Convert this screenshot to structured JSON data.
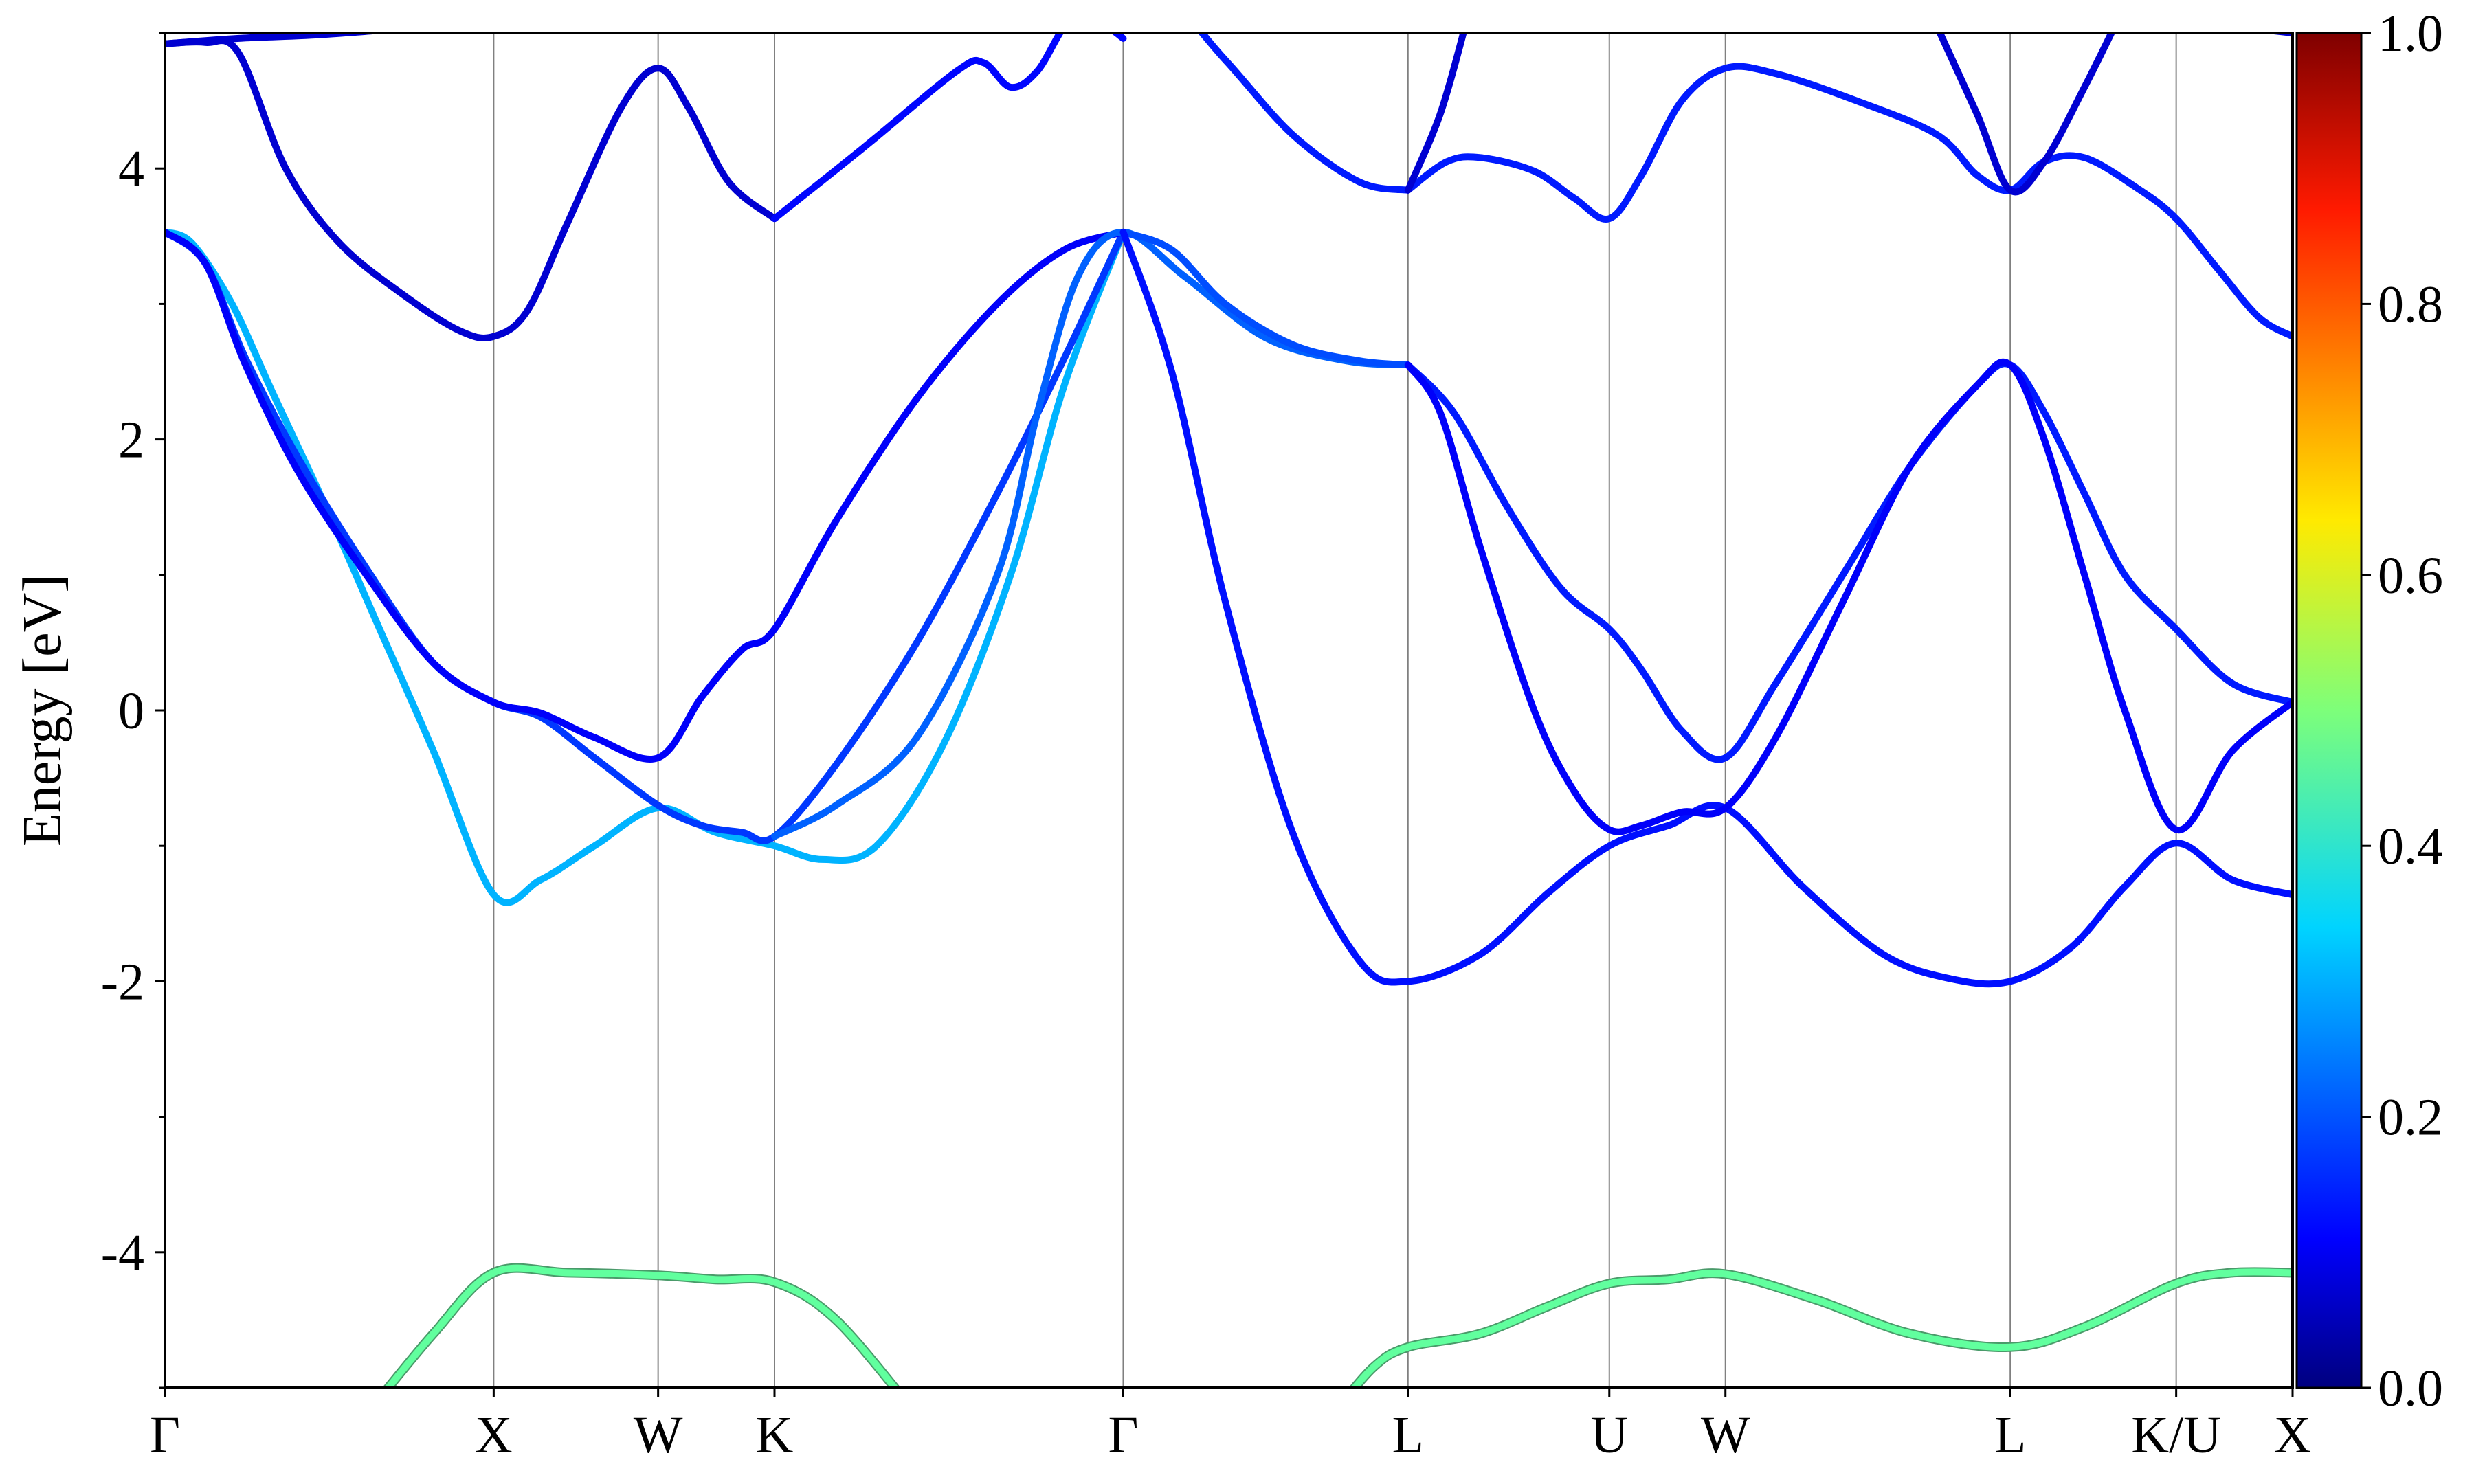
{
  "chart_data": {
    "type": "line",
    "title": "",
    "xlabel": "",
    "ylabel": "Energy [eV]",
    "ylim": [
      -5,
      5
    ],
    "y_ticks": [
      -4,
      -2,
      0,
      2,
      4
    ],
    "y_tick_labels": [
      "-4",
      "-2",
      "0",
      "2",
      "4"
    ],
    "high_symmetry_labels": [
      "Γ",
      "X",
      "W",
      "K",
      "Γ",
      "L",
      "U",
      "W",
      "L",
      "K/U",
      "X"
    ],
    "high_symmetry_x": [
      0,
      2.449,
      3.674,
      4.541,
      7.139,
      9.26,
      10.76,
      11.625,
      13.747,
      14.983,
      15.85
    ],
    "xlim": [
      0,
      15.85
    ],
    "colorbar": {
      "min": 0.0,
      "max": 1.0,
      "ticks": [
        "0.0",
        "0.2",
        "0.4",
        "0.6",
        "0.8",
        "1.0"
      ],
      "colormap": "jet"
    },
    "series": [
      {
        "color_value": 0.08,
        "x": [
          0,
          0.55,
          1.2,
          1.8,
          2.2,
          2.449,
          2.75,
          3.1,
          3.5,
          3.674,
          3.9,
          4.2,
          4.541,
          5.2,
          6.0,
          6.5,
          7.139,
          7.5,
          8.2,
          9.0,
          9.26,
          9.6,
          10.2,
          10.76,
          11.0,
          11.35,
          11.625,
          12.2,
          12.8,
          13.2,
          13.747,
          14.2,
          14.7,
          14.983,
          15.4,
          15.85
        ],
        "y": [
          4.92,
          4.96,
          4.99,
          5.05,
          5.2,
          5.35,
          5.2,
          5.1,
          5.1,
          5.12,
          5.1,
          5.05,
          5.06,
          5.1,
          5.2,
          5.15,
          5.1,
          5.2,
          5.3,
          5.2,
          5.15,
          5.2,
          5.3,
          5.25,
          5.2,
          5.15,
          5.2,
          5.3,
          5.3,
          5.4,
          5.5,
          5.4,
          5.2,
          5.1,
          5.05,
          5.0
        ]
      },
      {
        "color_value": 0.08,
        "x": [
          0,
          0.3,
          0.55,
          0.9,
          1.3,
          1.8,
          2.2,
          2.449,
          2.7,
          3.0,
          3.4,
          3.674,
          3.9,
          4.2,
          4.541
        ],
        "y": [
          4.92,
          4.93,
          4.85,
          4.0,
          3.45,
          3.05,
          2.8,
          2.76,
          2.95,
          3.6,
          4.45,
          4.74,
          4.45,
          3.9,
          3.63
        ]
      },
      {
        "color_value": 0.13,
        "x": [
          4.541,
          5.2,
          5.9,
          6.1,
          6.3,
          6.5,
          6.75,
          7.0,
          7.139
        ],
        "y": [
          3.63,
          4.15,
          4.72,
          4.78,
          4.6,
          4.72,
          5.1,
          5.05,
          4.96
        ]
      },
      {
        "color_value": 0.15,
        "x": [
          7.139,
          7.5,
          7.9,
          8.4,
          8.9,
          9.26
        ],
        "y": [
          5.1,
          5.2,
          4.8,
          4.25,
          3.9,
          3.84
        ]
      },
      {
        "color_value": 0.15,
        "x": [
          9.26,
          9.55,
          9.8,
          10.2,
          10.5,
          10.76,
          11.0,
          11.3,
          11.625,
          12.0,
          12.6,
          13.2,
          13.5,
          13.747,
          14.0,
          14.3,
          14.7,
          14.983,
          15.3,
          15.6,
          15.85
        ],
        "y": [
          3.84,
          4.05,
          4.08,
          3.98,
          3.78,
          3.63,
          3.95,
          4.5,
          4.74,
          4.7,
          4.5,
          4.25,
          3.95,
          3.84,
          4.05,
          4.08,
          3.85,
          3.63,
          3.25,
          2.9,
          2.76
        ]
      },
      {
        "color_value": 0.08,
        "x": [
          9.26,
          9.5,
          9.7
        ],
        "y": [
          3.84,
          4.4,
          5.1
        ]
      },
      {
        "color_value": 0.08,
        "x": [
          13.2,
          13.5,
          13.747,
          14.0,
          14.3,
          14.55
        ],
        "y": [
          5.05,
          4.4,
          3.84,
          4.05,
          4.6,
          5.1
        ]
      },
      {
        "color_value": 0.3,
        "x": [
          0,
          0.2,
          0.5,
          0.8,
          1.2,
          1.6,
          2.0,
          2.449,
          2.8,
          3.2,
          3.674,
          4.1,
          4.541,
          4.9,
          5.3,
          5.8,
          6.3,
          6.7,
          7.139
        ],
        "y": [
          3.53,
          3.45,
          3.0,
          2.35,
          1.5,
          0.6,
          -0.3,
          -1.36,
          -1.25,
          -1.0,
          -0.72,
          -0.9,
          -1.0,
          -1.1,
          -1.0,
          -0.25,
          1.0,
          2.4,
          3.53
        ]
      },
      {
        "color_value": 0.18,
        "x": [
          0,
          0.3,
          0.6,
          1.0,
          1.5,
          2.0,
          2.449,
          2.8,
          3.2,
          3.674,
          4.0,
          4.3,
          4.541,
          5.0,
          5.6,
          6.2,
          6.7,
          7.139
        ],
        "y": [
          3.53,
          3.3,
          2.6,
          1.85,
          1.05,
          0.35,
          0.06,
          -0.05,
          -0.35,
          -0.7,
          -0.85,
          -0.9,
          -0.93,
          -0.4,
          0.5,
          1.6,
          2.6,
          3.53
        ]
      },
      {
        "color_value": 0.12,
        "x": [
          0,
          0.3,
          0.6,
          1.0,
          1.5,
          2.0,
          2.449,
          2.8,
          3.2,
          3.674,
          4.0,
          4.3,
          4.541,
          5.0,
          5.6,
          6.2,
          6.7,
          7.139
        ],
        "y": [
          3.53,
          3.3,
          2.55,
          1.75,
          1.0,
          0.35,
          0.06,
          -0.02,
          -0.2,
          -0.35,
          0.1,
          0.45,
          0.6,
          1.4,
          2.3,
          3.0,
          3.4,
          3.53
        ]
      },
      {
        "color_value": 0.22,
        "x": [
          4.541,
          5.0,
          5.6,
          6.2,
          6.5,
          6.8,
          7.139,
          7.6,
          8.2,
          8.8,
          9.26
        ],
        "y": [
          -0.93,
          -0.7,
          -0.2,
          1.0,
          2.2,
          3.2,
          3.53,
          3.2,
          2.75,
          2.58,
          2.55
        ]
      },
      {
        "color_value": 0.2,
        "x": [
          7.139,
          7.5,
          7.9,
          8.4,
          8.9,
          9.26
        ],
        "y": [
          3.53,
          3.4,
          3.0,
          2.7,
          2.58,
          2.55
        ]
      },
      {
        "color_value": 0.14,
        "x": [
          7.139,
          7.5,
          7.9,
          8.4,
          8.9,
          9.26,
          9.8,
          10.3,
          10.76,
          11.2,
          11.625,
          12.2,
          12.8,
          13.3,
          13.747,
          14.2,
          14.6,
          14.983,
          15.4,
          15.85
        ],
        "y": [
          3.53,
          2.5,
          0.8,
          -0.9,
          -1.85,
          -2.0,
          -1.8,
          -1.35,
          -1.0,
          -0.85,
          -0.72,
          -1.3,
          -1.8,
          -1.98,
          -2.0,
          -1.75,
          -1.3,
          -0.98,
          -1.25,
          -1.36
        ]
      },
      {
        "color_value": 0.15,
        "x": [
          9.26,
          9.6,
          10.0,
          10.4,
          10.76,
          11.0,
          11.3,
          11.625,
          12.0,
          12.5,
          13.0,
          13.5,
          13.747,
          14.0,
          14.3,
          14.6,
          14.983,
          15.4,
          15.85
        ],
        "y": [
          2.55,
          2.2,
          1.5,
          0.9,
          0.6,
          0.3,
          -0.15,
          -0.35,
          0.2,
          1.0,
          1.8,
          2.4,
          2.55,
          2.2,
          1.6,
          1.0,
          0.6,
          0.2,
          0.06
        ]
      },
      {
        "color_value": 0.12,
        "x": [
          9.26,
          9.5,
          9.8,
          10.2,
          10.5,
          10.76,
          11.0,
          11.3,
          11.625,
          12.0,
          12.5,
          13.0,
          13.5,
          13.747,
          14.0,
          14.3,
          14.6,
          14.983,
          15.4,
          15.85
        ],
        "y": [
          2.55,
          2.2,
          1.2,
          0.0,
          -0.6,
          -0.88,
          -0.85,
          -0.75,
          -0.72,
          -0.2,
          0.8,
          1.8,
          2.4,
          2.55,
          2.0,
          1.0,
          0.0,
          -0.88,
          -0.3,
          0.06
        ]
      },
      {
        "color_value": 0.47,
        "x": [
          1.5,
          2.0,
          2.449,
          3.0,
          3.674,
          4.1,
          4.541,
          5.0,
          5.6
        ],
        "y": [
          -5.2,
          -4.6,
          -4.15,
          -4.15,
          -4.17,
          -4.2,
          -4.22,
          -4.5,
          -5.2
        ]
      },
      {
        "color_value": 0.47,
        "x": [
          8.7,
          9.0,
          9.26,
          9.8,
          10.3,
          10.76,
          11.2,
          11.625,
          12.3,
          13.0,
          13.747,
          14.3,
          14.983,
          15.4,
          15.85
        ],
        "y": [
          -5.2,
          -4.85,
          -4.7,
          -4.6,
          -4.4,
          -4.23,
          -4.2,
          -4.16,
          -4.35,
          -4.6,
          -4.7,
          -4.55,
          -4.23,
          -4.15,
          -4.15
        ]
      }
    ]
  }
}
